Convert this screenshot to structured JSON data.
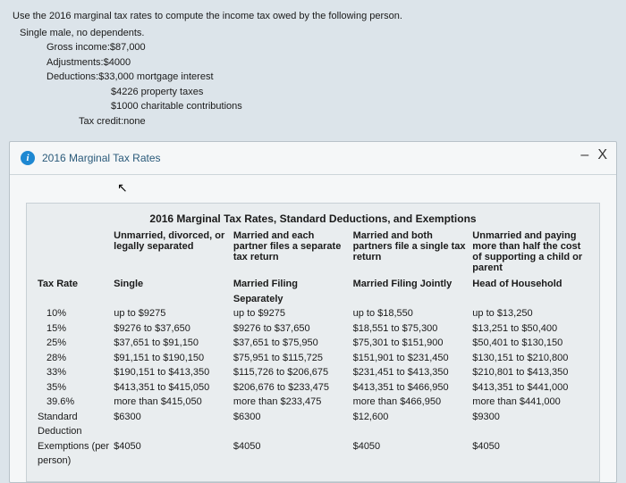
{
  "question": {
    "intro": "Use the 2016 marginal tax rates to compute the income tax owed by the following person.",
    "filing": "Single male, no dependents.",
    "gross": "Gross income:$87,000",
    "adjustments": "Adjustments:$4000",
    "deductions": "Deductions:$33,000 mortgage interest",
    "ded2": "$4226 property taxes",
    "ded3": "$1000 charitable contributions",
    "credit": "Tax credit:none"
  },
  "panel": {
    "title": "2016 Marginal Tax Rates",
    "minimize": "–",
    "close": "X"
  },
  "table": {
    "title": "2016 Marginal Tax Rates, Standard Deductions, and Exemptions",
    "headers": {
      "col1": "Unmarried, divorced, or legally separated",
      "col2": "Married and each partner files a separate tax return",
      "col3": "Married and both partners file a single tax return",
      "col4": "Unmarried and paying more than half the cost of supporting a child or parent"
    },
    "subheaders": {
      "rate": "Tax Rate",
      "c1": "Single",
      "c2": "Married Filing Separately",
      "c3": "Married Filing Jointly",
      "c4": "Head of Household"
    },
    "rows": [
      {
        "rate": "10%",
        "c1": "up to $9275",
        "c2": "up to $9275",
        "c3": "up to $18,550",
        "c4": "up to $13,250"
      },
      {
        "rate": "15%",
        "c1": "$9276 to $37,650",
        "c2": "$9276 to $37,650",
        "c3": "$18,551 to $75,300",
        "c4": "$13,251 to $50,400"
      },
      {
        "rate": "25%",
        "c1": "$37,651 to $91,150",
        "c2": "$37,651 to $75,950",
        "c3": "$75,301 to $151,900",
        "c4": "$50,401 to $130,150"
      },
      {
        "rate": "28%",
        "c1": "$91,151 to $190,150",
        "c2": "$75,951 to $115,725",
        "c3": "$151,901 to $231,450",
        "c4": "$130,151 to $210,800"
      },
      {
        "rate": "33%",
        "c1": "$190,151 to $413,350",
        "c2": "$115,726 to $206,675",
        "c3": "$231,451 to $413,350",
        "c4": "$210,801 to $413,350"
      },
      {
        "rate": "35%",
        "c1": "$413,351 to $415,050",
        "c2": "$206,676 to $233,475",
        "c3": "$413,351 to $466,950",
        "c4": "$413,351 to $441,000"
      },
      {
        "rate": "39.6%",
        "c1": "more than $415,050",
        "c2": "more than $233,475",
        "c3": "more than $466,950",
        "c4": "more than $441,000"
      }
    ],
    "std": {
      "label": "Standard Deduction",
      "c1": "$6300",
      "c2": "$6300",
      "c3": "$12,600",
      "c4": "$9300"
    },
    "exemp": {
      "label": "Exemptions (per person)",
      "c1": "$4050",
      "c2": "$4050",
      "c3": "$4050",
      "c4": "$4050"
    }
  }
}
